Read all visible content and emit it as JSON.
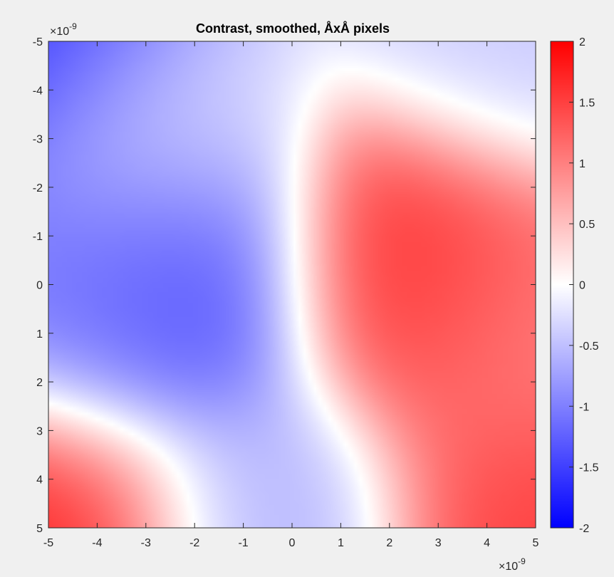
{
  "chart_data": {
    "type": "heatmap",
    "title": "Contrast, smoothed, ÅxÅ pixels",
    "xlabel": "",
    "ylabel": "",
    "x_exponent_label": "×10",
    "x_exponent_power": "-9",
    "y_exponent_label": "×10",
    "y_exponent_power": "-9",
    "xlim": [
      -5,
      5
    ],
    "ylim": [
      -5,
      5
    ],
    "y_axis_direction": "reversed",
    "xticks": [
      -5,
      -4,
      -3,
      -2,
      -1,
      0,
      1,
      2,
      3,
      4,
      5
    ],
    "yticks": [
      -5,
      -4,
      -3,
      -2,
      -1,
      0,
      1,
      2,
      3,
      4,
      5
    ],
    "colorbar": {
      "limits": [
        -2,
        2
      ],
      "ticks": [
        "2",
        "1.5",
        "1",
        "0.5",
        "0",
        "-0.5",
        "-1",
        "-1.5",
        "-2"
      ],
      "colormap": [
        "#0000ff",
        "#ffffff",
        "#ff0000"
      ]
    },
    "grid": false,
    "field_features": [
      {
        "x": 2.6,
        "y": -0.3,
        "value": 1.75
      },
      {
        "x": 4.7,
        "y": 1.0,
        "value": 0.9
      },
      {
        "x": -4.9,
        "y": 4.9,
        "value": 1.7
      },
      {
        "x": 4.9,
        "y": 4.9,
        "value": 1.5
      },
      {
        "x": 4.5,
        "y": -4.9,
        "value": -0.4
      },
      {
        "x": -2.3,
        "y": 0.0,
        "value": -1.5
      },
      {
        "x": -4.3,
        "y": 0.3,
        "value": -1.0
      },
      {
        "x": -4.9,
        "y": -4.9,
        "value": -1.7
      },
      {
        "x": -2.9,
        "y": -3.3,
        "value": -0.1
      },
      {
        "x": -0.5,
        "y": 4.8,
        "value": -0.6
      }
    ]
  }
}
